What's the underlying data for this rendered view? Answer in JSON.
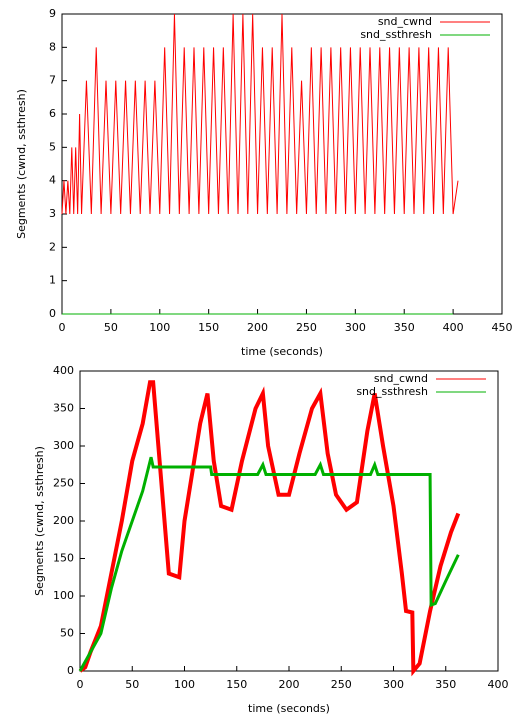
{
  "chart_data": [
    {
      "type": "line",
      "xlabel": "time (seconds)",
      "ylabel": "Segments (cwnd, ssthresh)",
      "xlim": [
        0,
        450
      ],
      "ylim": [
        0,
        9
      ],
      "xticks": [
        0,
        50,
        100,
        150,
        200,
        250,
        300,
        350,
        400,
        450
      ],
      "yticks": [
        0,
        1,
        2,
        3,
        4,
        5,
        6,
        7,
        8,
        9
      ],
      "legend": "top-right",
      "series": [
        {
          "name": "snd_cwnd",
          "color": "#ff0000",
          "x": [
            0,
            2,
            4,
            6,
            8,
            10,
            12,
            14,
            16,
            18,
            20,
            25,
            30,
            35,
            40,
            45,
            50,
            55,
            60,
            65,
            70,
            75,
            80,
            85,
            90,
            95,
            100,
            105,
            110,
            115,
            120,
            125,
            130,
            135,
            140,
            145,
            150,
            155,
            160,
            165,
            170,
            175,
            180,
            185,
            190,
            195,
            200,
            205,
            210,
            215,
            220,
            225,
            230,
            235,
            240,
            245,
            250,
            255,
            260,
            265,
            270,
            275,
            280,
            285,
            290,
            295,
            300,
            305,
            310,
            315,
            320,
            325,
            330,
            335,
            340,
            345,
            350,
            355,
            360,
            365,
            370,
            375,
            380,
            385,
            390,
            395,
            400,
            405
          ],
          "values": [
            3,
            4,
            3,
            4,
            3,
            5,
            3,
            5,
            3,
            6,
            3,
            7,
            3,
            8,
            3,
            7,
            3,
            7,
            3,
            7,
            3,
            7,
            3,
            7,
            3,
            7,
            3,
            8,
            3,
            9,
            3,
            8,
            3,
            8,
            3,
            8,
            3,
            8,
            3,
            8,
            3,
            9,
            3,
            9,
            3,
            9,
            3,
            8,
            3,
            8,
            3,
            9,
            3,
            8,
            3,
            7,
            3,
            8,
            3,
            8,
            3,
            8,
            3,
            8,
            3,
            8,
            3,
            8,
            3,
            8,
            3,
            8,
            3,
            8,
            3,
            8,
            3,
            8,
            3,
            8,
            3,
            8,
            3,
            8,
            3,
            8,
            3,
            4
          ]
        },
        {
          "name": "snd_ssthresh",
          "color": "#00b000",
          "x": [
            0,
            20,
            40,
            60,
            80,
            100,
            120,
            140,
            160,
            180,
            200,
            220,
            240,
            260,
            280,
            300,
            320,
            340,
            360,
            380,
            400
          ],
          "values": [
            0,
            0,
            0,
            0,
            0,
            0,
            0,
            0,
            0,
            0,
            0,
            0,
            0,
            0,
            0,
            0,
            0,
            0,
            0,
            0,
            0
          ]
        }
      ]
    },
    {
      "type": "line",
      "xlabel": "time (seconds)",
      "ylabel": "Segments (cwnd, ssthresh)",
      "xlim": [
        0,
        400
      ],
      "ylim": [
        0,
        400
      ],
      "xticks": [
        0,
        50,
        100,
        150,
        200,
        250,
        300,
        350,
        400
      ],
      "yticks": [
        0,
        50,
        100,
        150,
        200,
        250,
        300,
        350,
        400
      ],
      "legend": "top-right",
      "series": [
        {
          "name": "snd_cwnd",
          "color": "#ff0000",
          "x": [
            0,
            5,
            10,
            20,
            30,
            40,
            50,
            60,
            67,
            70,
            75,
            85,
            95,
            100,
            115,
            122,
            128,
            135,
            145,
            155,
            168,
            175,
            180,
            190,
            200,
            210,
            222,
            230,
            237,
            245,
            255,
            265,
            275,
            282,
            290,
            300,
            308,
            312,
            318,
            319,
            325,
            335,
            345,
            355,
            362
          ],
          "values": [
            0,
            5,
            25,
            60,
            130,
            200,
            280,
            330,
            385,
            385,
            300,
            130,
            125,
            200,
            330,
            370,
            280,
            220,
            215,
            280,
            350,
            370,
            300,
            235,
            235,
            290,
            350,
            370,
            290,
            235,
            215,
            225,
            320,
            370,
            300,
            220,
            130,
            80,
            78,
            0,
            10,
            80,
            140,
            185,
            210
          ]
        },
        {
          "name": "snd_ssthresh",
          "color": "#00b000",
          "x": [
            0,
            10,
            20,
            30,
            40,
            50,
            60,
            68,
            70,
            125,
            126,
            170,
            175,
            178,
            225,
            230,
            233,
            278,
            282,
            285,
            335,
            336,
            340,
            350,
            362
          ],
          "values": [
            0,
            25,
            50,
            110,
            160,
            200,
            240,
            285,
            272,
            272,
            262,
            262,
            275,
            262,
            262,
            275,
            262,
            262,
            275,
            262,
            262,
            88,
            90,
            120,
            155
          ]
        }
      ]
    }
  ]
}
